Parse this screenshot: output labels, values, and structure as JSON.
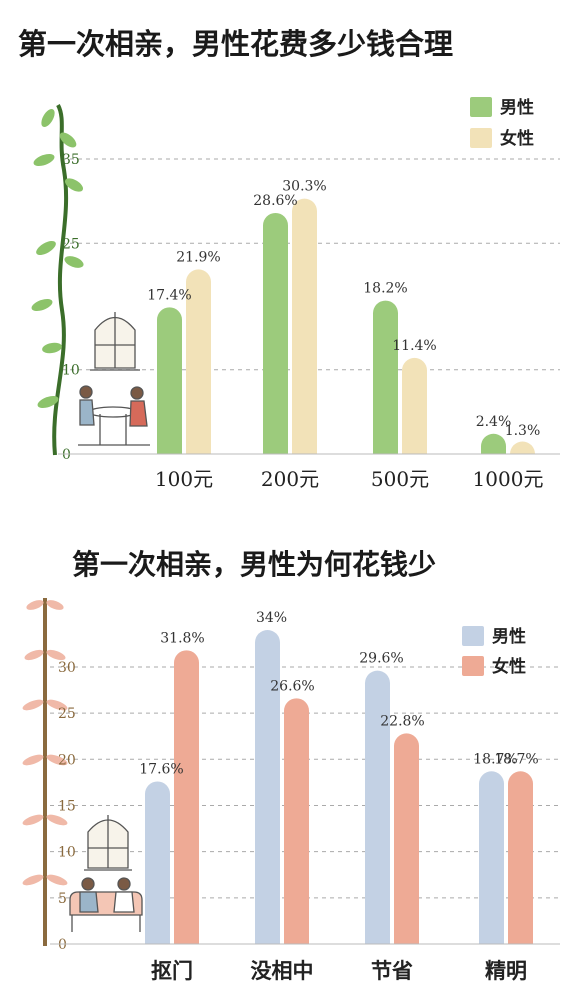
{
  "chart_data": [
    {
      "type": "bar",
      "title": "第一次相亲，男性花费多少钱合理",
      "categories": [
        "100元",
        "200元",
        "500元",
        "1000元"
      ],
      "series": [
        {
          "name": "男性",
          "values": [
            17.4,
            28.6,
            18.2,
            2.4
          ],
          "labels": [
            "17.4%",
            "28.6%",
            "18.2%",
            "2.4%"
          ]
        },
        {
          "name": "女性",
          "values": [
            21.9,
            30.3,
            11.4,
            1.3
          ],
          "labels": [
            "21.9%",
            "30.3%",
            "11.4%",
            "1.3%"
          ]
        }
      ],
      "yticks": [
        "0",
        "10",
        "25",
        "35"
      ],
      "ylim": [
        0,
        35
      ],
      "grid": true,
      "legend": "top-right",
      "colors": {
        "男性": "#9ccb7c",
        "女性": "#f2e2b8"
      }
    },
    {
      "type": "bar",
      "title": "第一次相亲，男性为何花钱少",
      "categories": [
        "抠门",
        "没相中",
        "节省",
        "精明"
      ],
      "series": [
        {
          "name": "男性",
          "values": [
            17.6,
            34,
            29.6,
            18.7
          ],
          "labels": [
            "17.6%",
            "34%",
            "29.6%",
            "18.7%"
          ]
        },
        {
          "name": "女性",
          "values": [
            31.8,
            26.6,
            22.8,
            18.7
          ],
          "labels": [
            "31.8%",
            "26.6%",
            "22.8%",
            "18.7%"
          ]
        }
      ],
      "yticks": [
        "0",
        "5",
        "10",
        "15",
        "20",
        "25",
        "30"
      ],
      "ylim": [
        0,
        34
      ],
      "grid": true,
      "legend": "top-right",
      "colors": {
        "男性": "#c3d1e4",
        "女性": "#eeaa95"
      }
    }
  ]
}
